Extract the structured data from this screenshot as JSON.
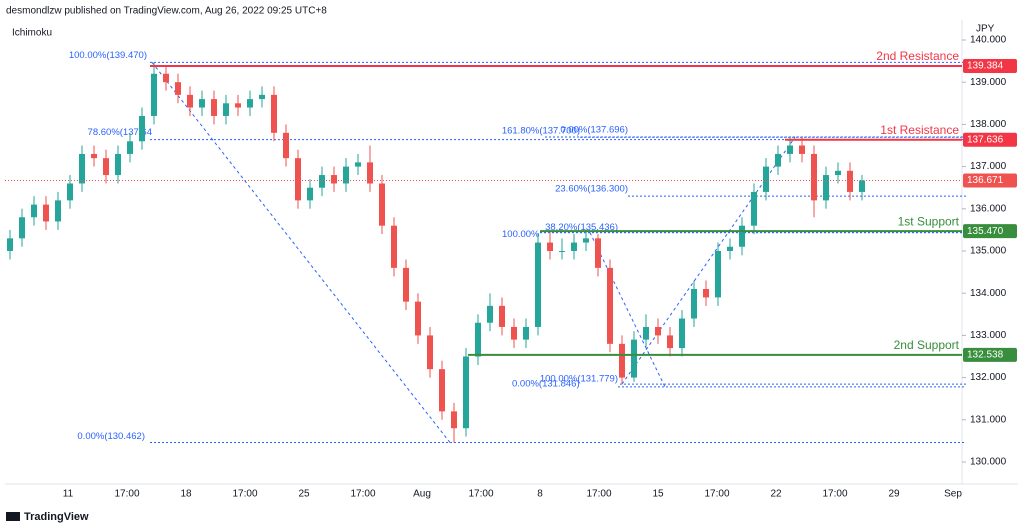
{
  "header": {
    "publisher": "desmondlzw published on TradingView.com, Aug 26, 2022 09:25 UTC+8",
    "indicator": "Ichimoku",
    "currency": "JPY",
    "footer": "TradingView"
  },
  "chart_data": {
    "type": "candlestick",
    "x_labels": [
      "11",
      "17:00",
      "18",
      "17:00",
      "25",
      "17:00",
      "Aug",
      "17:00",
      "8",
      "17:00",
      "15",
      "17:00",
      "22",
      "17:00",
      "29",
      "Sep"
    ],
    "open": [
      135.0,
      135.3,
      135.8,
      136.1,
      135.7,
      136.2,
      136.6,
      137.3,
      137.2,
      136.8,
      137.3,
      137.6,
      138.2,
      139.2,
      139.0,
      138.7,
      138.4,
      138.6,
      138.2,
      138.5,
      138.4,
      138.6,
      138.7,
      137.8,
      137.2,
      136.2,
      136.5,
      136.8,
      136.6,
      137.0,
      137.1,
      136.6,
      135.6,
      134.6,
      133.8,
      133.0,
      132.2,
      131.2,
      130.8,
      132.5,
      133.3,
      133.7,
      133.2,
      132.9,
      133.2,
      135.2,
      135.0,
      135.0,
      135.2,
      135.3,
      134.6,
      132.8,
      132.0,
      132.9,
      133.2,
      133.0,
      132.7,
      133.4,
      134.1,
      133.9,
      135.0,
      135.1,
      135.6,
      136.4,
      137.0,
      137.3,
      137.5,
      137.3,
      136.2,
      136.8,
      136.9,
      136.4
    ],
    "high": [
      135.5,
      136.0,
      136.3,
      136.3,
      136.4,
      136.8,
      137.5,
      137.5,
      137.4,
      137.5,
      137.8,
      138.4,
      139.47,
      139.4,
      139.2,
      138.9,
      138.8,
      138.8,
      138.7,
      138.7,
      138.8,
      138.9,
      138.9,
      138.0,
      137.4,
      136.7,
      137.0,
      137.0,
      137.2,
      137.3,
      137.5,
      136.8,
      135.8,
      134.8,
      134.0,
      133.2,
      132.4,
      131.4,
      132.7,
      133.5,
      134.0,
      133.9,
      133.4,
      133.4,
      135.4,
      135.5,
      135.3,
      135.4,
      135.5,
      135.4,
      134.8,
      133.0,
      133.1,
      133.5,
      133.4,
      133.2,
      133.6,
      134.3,
      134.3,
      135.2,
      135.3,
      135.8,
      136.6,
      137.2,
      137.5,
      137.7,
      137.7,
      137.5,
      137.0,
      137.1,
      137.1,
      136.8
    ],
    "low": [
      134.8,
      135.1,
      135.6,
      135.5,
      135.5,
      136.0,
      136.4,
      137.0,
      136.6,
      136.6,
      137.1,
      137.4,
      138.0,
      138.8,
      138.5,
      138.2,
      138.2,
      138.0,
      138.0,
      138.2,
      138.2,
      138.4,
      137.6,
      137.0,
      136.0,
      136.0,
      136.3,
      136.4,
      136.4,
      136.8,
      136.4,
      135.4,
      134.4,
      133.6,
      132.8,
      132.0,
      131.0,
      130.46,
      130.6,
      132.3,
      133.1,
      133.0,
      132.7,
      132.7,
      133.0,
      134.8,
      134.8,
      134.8,
      135.0,
      134.4,
      132.6,
      131.84,
      131.9,
      132.7,
      132.8,
      132.5,
      132.5,
      133.2,
      133.7,
      133.7,
      134.8,
      134.9,
      135.4,
      136.2,
      136.8,
      137.1,
      137.1,
      135.8,
      136.0,
      136.6,
      136.2,
      136.2
    ],
    "close": [
      135.3,
      135.8,
      136.1,
      135.7,
      136.2,
      136.6,
      137.3,
      137.2,
      136.8,
      137.3,
      137.6,
      138.2,
      139.2,
      139.0,
      138.7,
      138.4,
      138.6,
      138.2,
      138.5,
      138.4,
      138.6,
      138.7,
      137.8,
      137.2,
      136.2,
      136.5,
      136.8,
      136.6,
      137.0,
      137.1,
      136.6,
      135.6,
      134.6,
      133.8,
      133.0,
      132.2,
      131.2,
      130.8,
      132.5,
      133.3,
      133.7,
      133.2,
      132.9,
      133.2,
      135.2,
      135.0,
      135.0,
      135.2,
      135.3,
      134.6,
      132.8,
      132.0,
      132.9,
      133.2,
      133.0,
      132.7,
      133.4,
      134.1,
      133.9,
      135.0,
      135.1,
      135.6,
      136.4,
      137.0,
      137.3,
      137.5,
      137.3,
      136.2,
      136.8,
      136.9,
      136.4,
      136.671
    ],
    "up_color": "#26a69a",
    "down_color": "#ef5350",
    "ylim": [
      129.5,
      140.5
    ],
    "yticks": [
      {
        "value": 130,
        "label": "130.000"
      },
      {
        "value": 131,
        "label": "131.000"
      },
      {
        "value": 132,
        "label": "132.000"
      },
      {
        "value": 133,
        "label": "133.000"
      },
      {
        "value": 134,
        "label": "134.000"
      },
      {
        "value": 135,
        "label": "135.000"
      },
      {
        "value": 136,
        "label": "136.000"
      },
      {
        "value": 137,
        "label": "137.000"
      },
      {
        "value": 138,
        "label": "138.000"
      },
      {
        "value": 139,
        "label": "139.000"
      },
      {
        "value": 140,
        "label": "140.000"
      }
    ],
    "current_price": {
      "value": 136.671,
      "label": "136.671",
      "color": "#ef5350"
    },
    "levels": [
      {
        "name": "2nd Resistance",
        "value": 139.384,
        "value_label": "139.384",
        "color": "#f23645"
      },
      {
        "name": "1st Resistance",
        "value": 137.636,
        "value_label": "137.636",
        "color": "#f23645"
      },
      {
        "name": "1st Support",
        "value": 135.47,
        "value_label": "135.470",
        "color": "#388e3c"
      },
      {
        "name": "2nd Support",
        "value": 132.538,
        "value_label": "132.538",
        "color": "#388e3c"
      }
    ],
    "fib_lines": [
      {
        "label": "100.00%(139.470)",
        "value": 139.47
      },
      {
        "label": "78.60%(137.64",
        "value": 137.64
      },
      {
        "label": "0.00%(130.462)",
        "value": 130.462
      },
      {
        "label": "161.80%(137.700)",
        "value": 137.7
      },
      {
        "label": "0.00%(137.696)",
        "value": 137.696
      },
      {
        "label": "23.60%(136.300)",
        "value": 136.3
      },
      {
        "label": "38.20%(135.436)",
        "value": 135.436
      },
      {
        "label": "100.00%",
        "value": 135.436
      },
      {
        "label": "100.00%(131.779)",
        "value": 131.779
      },
      {
        "label": "0.00%(131.846)",
        "value": 131.846
      }
    ],
    "fib_color": "#2962ff"
  }
}
